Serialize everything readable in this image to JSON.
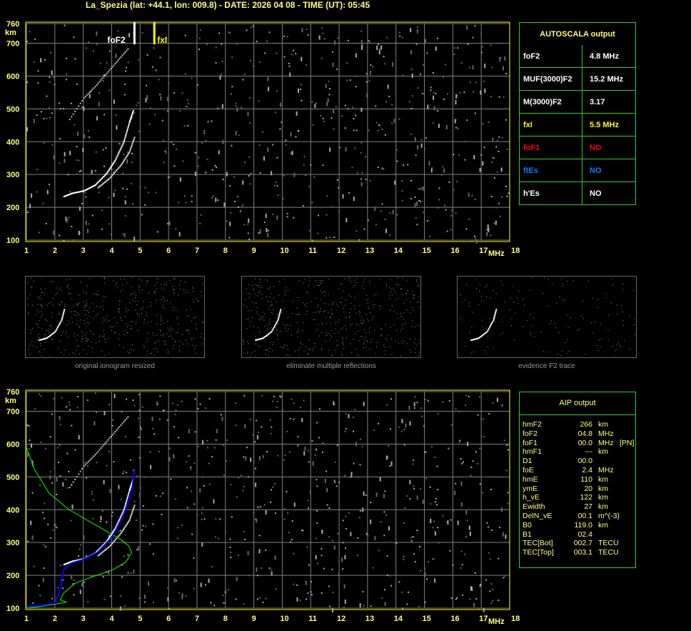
{
  "title": "La_Spezia (lat: +44.1, lon: 009.8) - DATE: 2026 04 08 - TIME (UT): 05:45",
  "chart_data": [
    {
      "type": "scatter",
      "title": "",
      "xlabel": "MHz",
      "ylabel": "km",
      "xlim": [
        1,
        18
      ],
      "ylim": [
        100,
        760
      ],
      "x_ticks": [
        1,
        2,
        3,
        4,
        5,
        6,
        7,
        8,
        9,
        10,
        11,
        12,
        13,
        14,
        15,
        16,
        17,
        18
      ],
      "y_ticks": [
        100,
        200,
        300,
        400,
        500,
        600,
        700,
        760
      ],
      "grid": true,
      "markers": [
        {
          "label": "foF2",
          "x": 4.8,
          "color": "#ffffff"
        },
        {
          "label": "fxI",
          "x": 5.5,
          "color": "#ffff00"
        }
      ],
      "trace_o": {
        "x": [
          2.3,
          2.6,
          3.0,
          3.4,
          3.8,
          4.1,
          4.4,
          4.6,
          4.75
        ],
        "y": [
          235,
          245,
          252,
          270,
          305,
          345,
          400,
          460,
          500
        ]
      },
      "trace_x": {
        "x": [
          3.5,
          3.9,
          4.3,
          4.6,
          4.8
        ],
        "y": [
          262,
          290,
          330,
          370,
          420
        ]
      },
      "trace_2hop": {
        "x": [
          2.5,
          3.0,
          3.4,
          3.8,
          4.2,
          4.6
        ],
        "y": [
          470,
          535,
          570,
          610,
          650,
          690
        ]
      }
    },
    {
      "type": "line",
      "title": "",
      "xlabel": "MHz",
      "ylabel": "km",
      "xlim": [
        1,
        18
      ],
      "ylim": [
        100,
        760
      ],
      "x_ticks": [
        1,
        2,
        3,
        4,
        5,
        6,
        7,
        8,
        9,
        10,
        11,
        12,
        13,
        14,
        15,
        16,
        17,
        18
      ],
      "y_ticks": [
        100,
        200,
        300,
        400,
        500,
        600,
        700,
        760
      ],
      "grid": true,
      "series": [
        {
          "color": "#00ff00",
          "x": [
            1,
            1.3,
            1.8,
            2.5,
            3.2,
            3.8,
            4.3,
            4.6,
            4.7,
            4.5,
            4.0,
            3.3,
            2.7,
            2.3,
            2.2,
            2.4,
            2.0,
            1.5,
            1
          ],
          "y": [
            590,
            520,
            450,
            400,
            365,
            335,
            310,
            290,
            270,
            240,
            215,
            195,
            175,
            145,
            125,
            118,
            112,
            105,
            100
          ]
        },
        {
          "color": "#0000ff",
          "x": [
            1,
            1.5,
            2.0,
            2.2,
            2.3,
            2.6,
            3.0,
            3.5,
            4.0,
            4.4,
            4.7,
            4.8
          ],
          "y": [
            105,
            108,
            115,
            160,
            215,
            238,
            248,
            270,
            315,
            380,
            450,
            520
          ]
        }
      ]
    }
  ],
  "autoscala": {
    "header": "AUTOSCALA output",
    "rows": [
      {
        "k": "foF2",
        "v": "4.8 MHz",
        "kc": "#ffffff",
        "vc": "#ffffff"
      },
      {
        "k": "MUF(3000)F2",
        "v": "15.2 MHz",
        "kc": "#ffffff",
        "vc": "#ffffff"
      },
      {
        "k": "M(3000)F2",
        "v": "3.17",
        "kc": "#ffffff",
        "vc": "#ffffff"
      },
      {
        "k": "fxI",
        "v": "5.5 MHz",
        "kc": "#ffff00",
        "vc": "#ffff00"
      },
      {
        "k": "foF1",
        "v": "NO",
        "kc": "#ff0000",
        "vc": "#ff0000"
      },
      {
        "k": "ftEs",
        "v": "NO",
        "kc": "#0080ff",
        "vc": "#0080ff"
      },
      {
        "k": "h'Es",
        "v": "NO",
        "kc": "#ffffff",
        "vc": "#ffffff"
      }
    ]
  },
  "thumbs": {
    "captions": [
      "original ionogram resized",
      "eliminate multiple reflections",
      "evidence F2 trace"
    ]
  },
  "aip": {
    "header": "AIP output",
    "rows": [
      [
        "hmF2",
        "266",
        "km",
        ""
      ],
      [
        "foF2",
        "04.8",
        "MHz",
        ""
      ],
      [
        "foF1",
        "00.0",
        "MHz",
        "[PN]"
      ],
      [
        "hmF1",
        "---",
        "km",
        ""
      ],
      [
        "D1",
        "00.0",
        "",
        ""
      ],
      [
        "foE",
        "2.4",
        "MHz",
        ""
      ],
      [
        "hmE",
        "110",
        "km",
        ""
      ],
      [
        "ymE",
        "20",
        "km",
        ""
      ],
      [
        "h_vE",
        "122",
        "km",
        ""
      ],
      [
        "Ewidth",
        "27",
        "km",
        ""
      ],
      [
        "DelN_vE",
        "00.1",
        "m^(-3)",
        ""
      ],
      [
        "B0",
        "119.0",
        "km",
        ""
      ],
      [
        "B1",
        "02.4",
        "",
        ""
      ],
      [
        "TEC[Bot]",
        "002.7",
        "TECU",
        ""
      ],
      [
        "TEC[Top]",
        "003.1",
        "TECU",
        ""
      ]
    ]
  }
}
